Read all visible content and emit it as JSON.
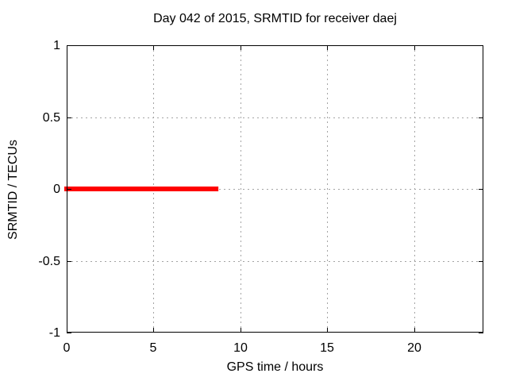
{
  "chart_data": {
    "type": "line",
    "title": "Day 042 of 2015, SRMTID for receiver daej",
    "xlabel": "GPS time / hours",
    "ylabel": "SRMTID / TECUs",
    "xlim": [
      0,
      24
    ],
    "ylim": [
      -1,
      1
    ],
    "xticks": [
      {
        "value": 0,
        "label": "0"
      },
      {
        "value": 5,
        "label": "5"
      },
      {
        "value": 10,
        "label": "10"
      },
      {
        "value": 15,
        "label": "15"
      },
      {
        "value": 20,
        "label": "20"
      }
    ],
    "yticks": [
      {
        "value": -1,
        "label": "-1"
      },
      {
        "value": -0.5,
        "label": "-0.5"
      },
      {
        "value": 0,
        "label": "0"
      },
      {
        "value": 0.5,
        "label": "0.5"
      },
      {
        "value": 1,
        "label": "1"
      }
    ],
    "grid": {
      "visible": true,
      "line_style": "dashed",
      "color": "#a4a4a4"
    },
    "legend": "none",
    "background": "#ffffff",
    "border_color": "#000000",
    "series": [
      {
        "name": "SRMTID",
        "color": "#ff0000",
        "linewidth": 6,
        "x": [
          0,
          8.6
        ],
        "y": [
          0,
          0
        ]
      }
    ]
  }
}
